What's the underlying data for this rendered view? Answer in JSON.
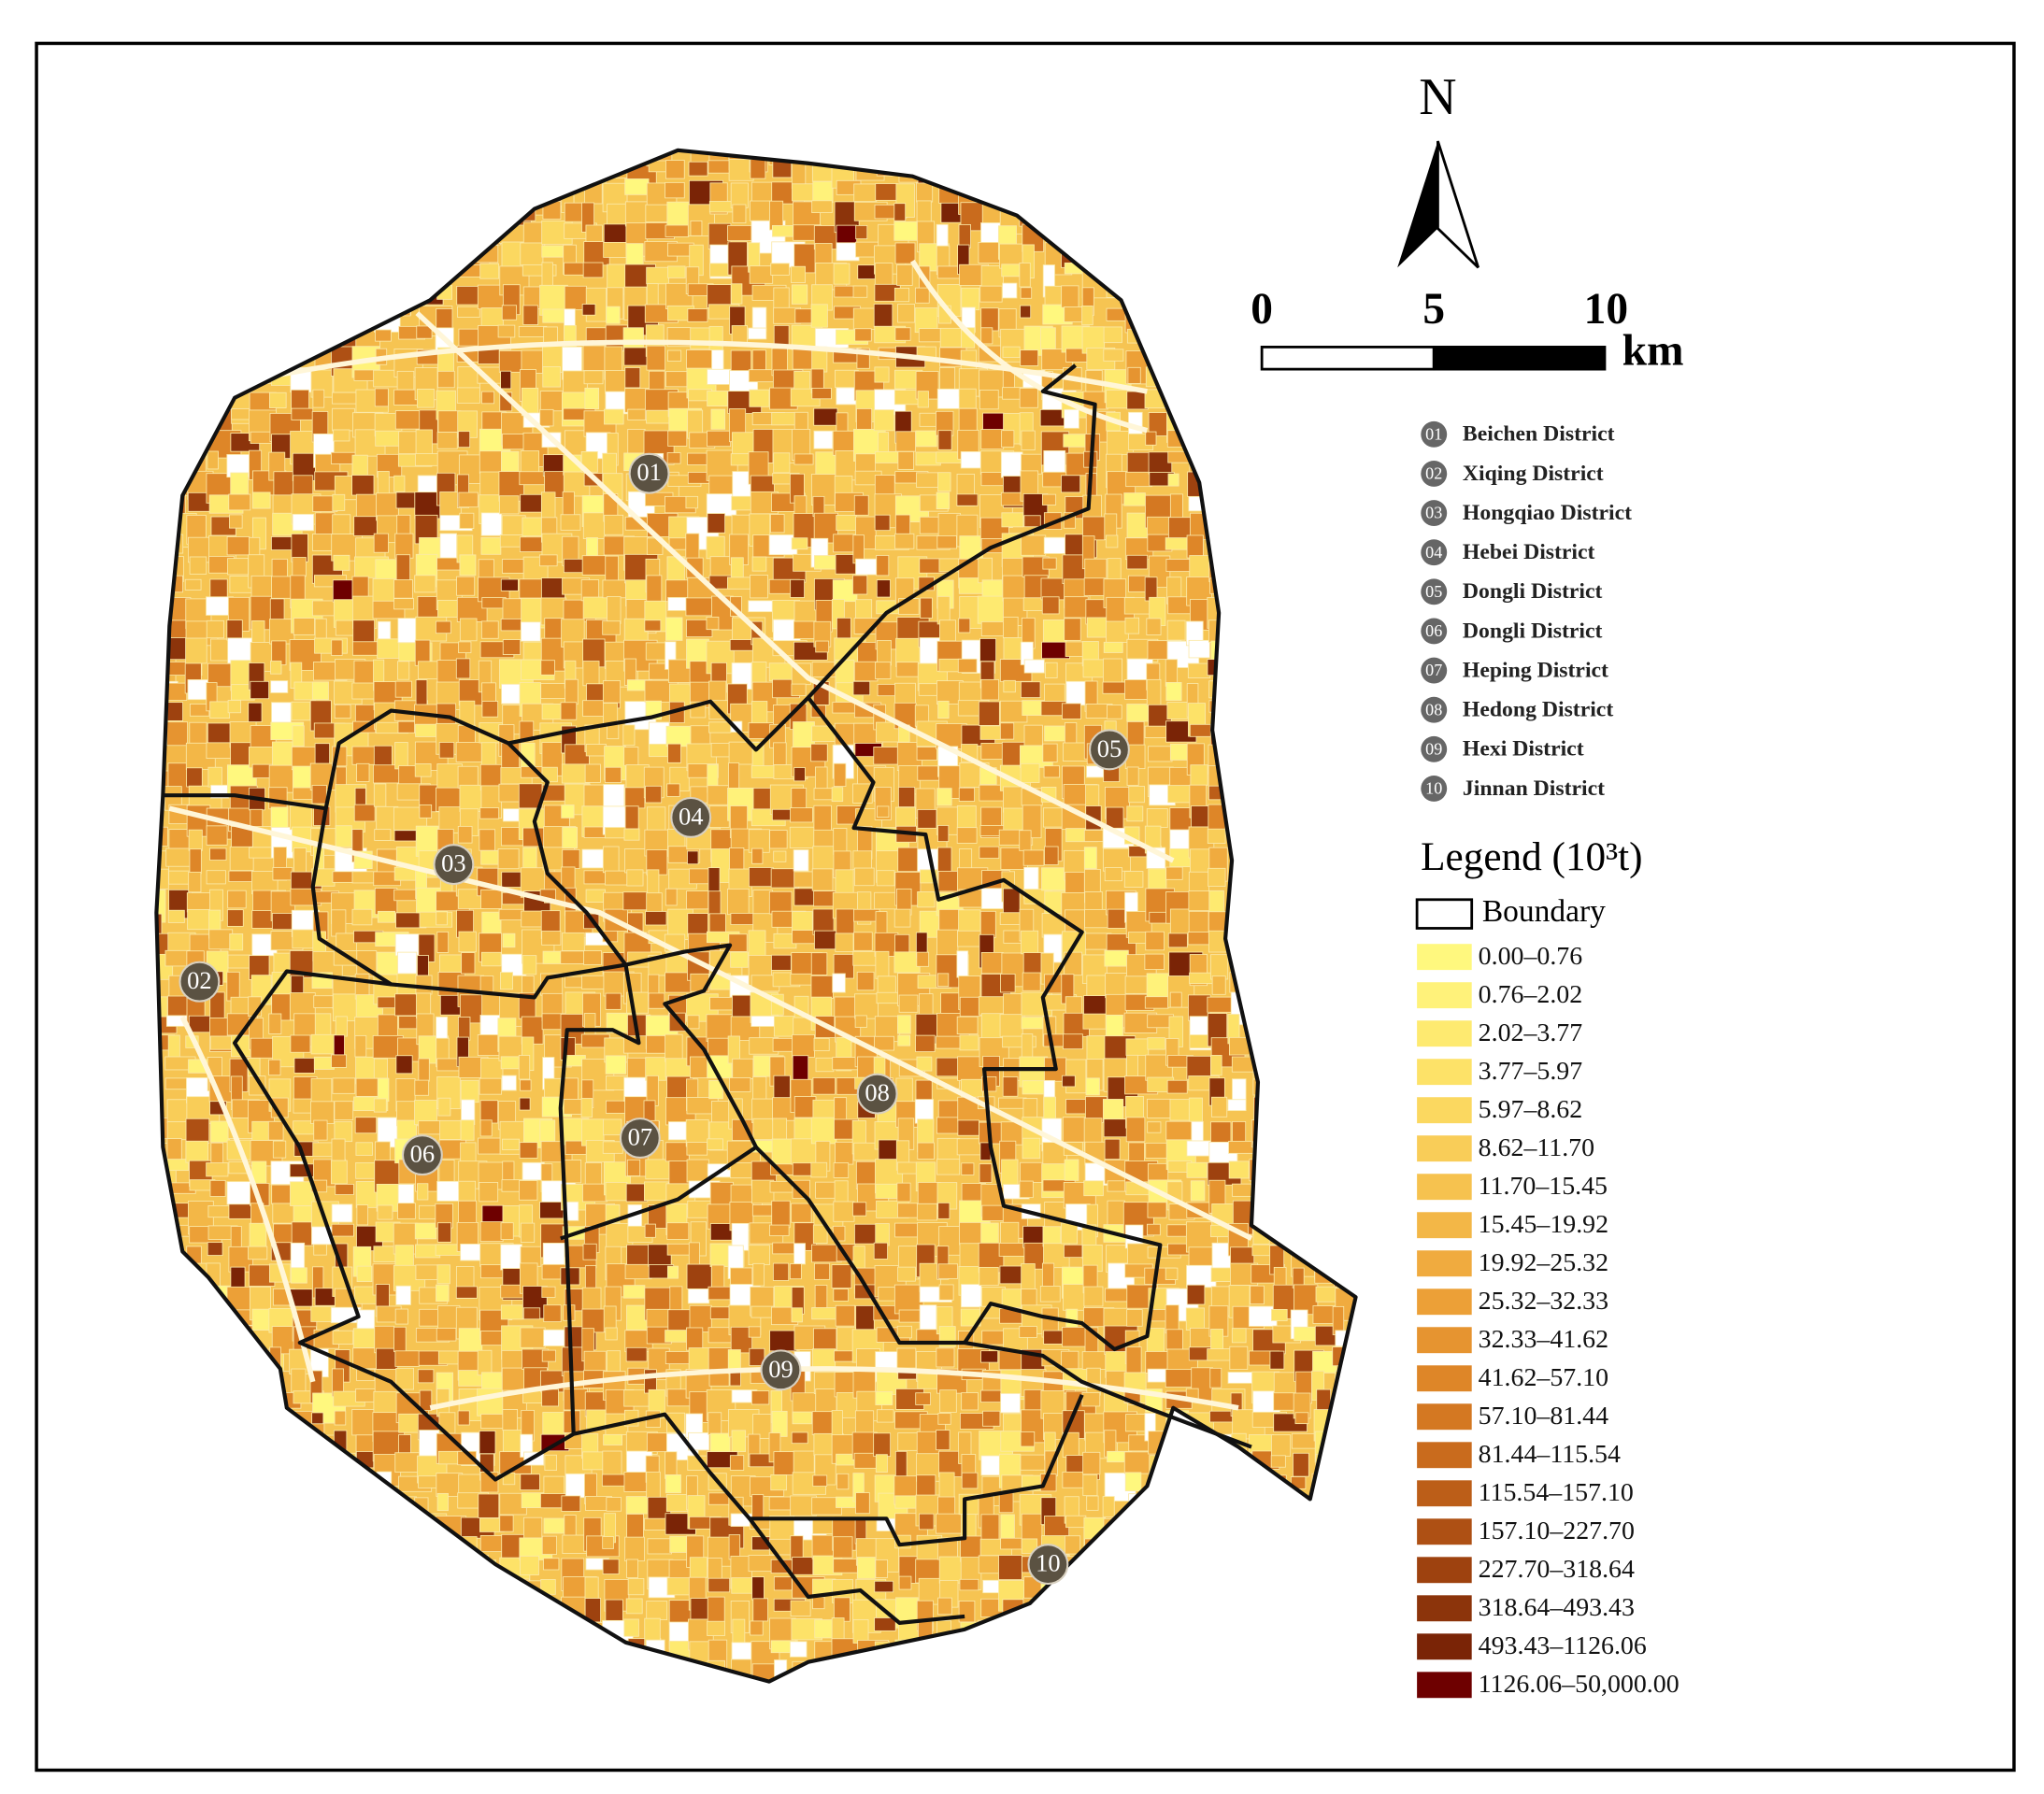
{
  "compass": {
    "label": "N"
  },
  "scale_bar": {
    "ticks": [
      0,
      5,
      10
    ],
    "unit": "km"
  },
  "districts": [
    {
      "number": "01",
      "name": "Beichen District"
    },
    {
      "number": "02",
      "name": "Xiqing District"
    },
    {
      "number": "03",
      "name": "Hongqiao District"
    },
    {
      "number": "04",
      "name": "Hebei District"
    },
    {
      "number": "05",
      "name": "Dongli District"
    },
    {
      "number": "06",
      "name": "Dongli District"
    },
    {
      "number": "07",
      "name": "Heping District"
    },
    {
      "number": "08",
      "name": "Hedong District"
    },
    {
      "number": "09",
      "name": "Hexi District"
    },
    {
      "number": "10",
      "name": "Jinnan District"
    }
  ],
  "legend": {
    "title": "Legend (10³t)",
    "boundary": "Boundary",
    "classes": [
      {
        "label": "0.00–0.76",
        "color": "#fff87e"
      },
      {
        "label": "0.76–2.02",
        "color": "#fff27a"
      },
      {
        "label": "2.02–3.77",
        "color": "#feea70"
      },
      {
        "label": "3.77–5.97",
        "color": "#fde268"
      },
      {
        "label": "5.97–8.62",
        "color": "#fbd860"
      },
      {
        "label": "8.62–11.70",
        "color": "#f9cd58"
      },
      {
        "label": "11.70–15.45",
        "color": "#f6c24f"
      },
      {
        "label": "15.45–19.92",
        "color": "#f3b747"
      },
      {
        "label": "19.92–25.32",
        "color": "#f0ab3f"
      },
      {
        "label": "25.32–32.33",
        "color": "#eca037"
      },
      {
        "label": "32.33–41.62",
        "color": "#e69430"
      },
      {
        "label": "41.62–57.10",
        "color": "#de8628"
      },
      {
        "label": "57.10–81.44",
        "color": "#d47822"
      },
      {
        "label": "81.44–115.54",
        "color": "#c96b1d"
      },
      {
        "label": "115.54–157.10",
        "color": "#bc5e18"
      },
      {
        "label": "157.10–227.70",
        "color": "#ae5014"
      },
      {
        "label": "227.70–318.64",
        "color": "#9e420f"
      },
      {
        "label": "318.64–493.43",
        "color": "#8c340b"
      },
      {
        "label": "493.43–1126.06",
        "color": "#7a2406"
      },
      {
        "label": "1126.06–50,000.00",
        "color": "#6e0000"
      }
    ]
  }
}
